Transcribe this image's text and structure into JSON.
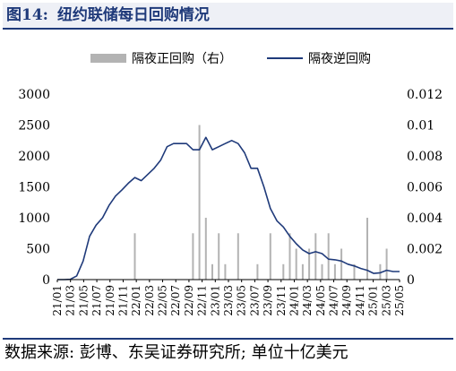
{
  "figure": {
    "label": "图14:",
    "title": "纽约联储每日回购情况"
  },
  "source_note": "数据来源: 彭博、东吴证券研究所; 单位十亿美元",
  "chart_data": {
    "type": "bar+line",
    "title": "",
    "legend_position": "top",
    "grid": false,
    "colors": {
      "bar": "#b3b3b3",
      "line": "#1f3a7a"
    },
    "x_labels": [
      "21/01",
      "21/03",
      "21/05",
      "21/07",
      "21/09",
      "21/11",
      "22/01",
      "22/03",
      "22/05",
      "22/07",
      "22/09",
      "22/11",
      "23/01",
      "23/03",
      "23/05",
      "23/07",
      "23/09",
      "23/11",
      "24/01",
      "24/03",
      "24/05",
      "24/07",
      "24/09",
      "24/11",
      "25/01",
      "25/03",
      "25/05"
    ],
    "x_range": [
      "2021-01",
      "2025-06"
    ],
    "left_axis": {
      "ylim": [
        0,
        3000
      ],
      "ticks": [
        "0",
        "500",
        "1000",
        "1500",
        "2000",
        "2500",
        "3000"
      ]
    },
    "right_axis": {
      "ylim": [
        0,
        0.012
      ],
      "ticks": [
        "0",
        "0.002",
        "0.004",
        "0.006",
        "0.008",
        "0.01",
        "0.012"
      ]
    },
    "series": [
      {
        "name": "隔夜正回购（右）",
        "type": "bar",
        "axis": "right",
        "points": [
          [
            "2022-01",
            0.003
          ],
          [
            "2022-10",
            0.003
          ],
          [
            "2022-11",
            0.01
          ],
          [
            "2022-12",
            0.004
          ],
          [
            "2023-01",
            0.001
          ],
          [
            "2023-02",
            0.003
          ],
          [
            "2023-03",
            0.001
          ],
          [
            "2023-05",
            0.003
          ],
          [
            "2023-08",
            0.001
          ],
          [
            "2023-10",
            0.003
          ],
          [
            "2023-12",
            0.001
          ],
          [
            "2024-01",
            0.003
          ],
          [
            "2024-02",
            0.002
          ],
          [
            "2024-03",
            0.001
          ],
          [
            "2024-04",
            0.002
          ],
          [
            "2024-05",
            0.003
          ],
          [
            "2024-06",
            0.001
          ],
          [
            "2024-07",
            0.003
          ],
          [
            "2024-08",
            0.001
          ],
          [
            "2024-09",
            0.002
          ],
          [
            "2024-11",
            0.001
          ],
          [
            "2025-01",
            0.004
          ],
          [
            "2025-03",
            0.001
          ],
          [
            "2025-04",
            0.002
          ]
        ]
      },
      {
        "name": "隔夜逆回购",
        "type": "line",
        "axis": "left",
        "points": [
          [
            "2021-01",
            0
          ],
          [
            "2021-02",
            0
          ],
          [
            "2021-03",
            5
          ],
          [
            "2021-04",
            60
          ],
          [
            "2021-05",
            300
          ],
          [
            "2021-06",
            700
          ],
          [
            "2021-07",
            880
          ],
          [
            "2021-08",
            1000
          ],
          [
            "2021-09",
            1200
          ],
          [
            "2021-10",
            1350
          ],
          [
            "2021-11",
            1450
          ],
          [
            "2021-12",
            1560
          ],
          [
            "2022-01",
            1650
          ],
          [
            "2022-02",
            1600
          ],
          [
            "2022-03",
            1700
          ],
          [
            "2022-04",
            1800
          ],
          [
            "2022-05",
            1930
          ],
          [
            "2022-06",
            2150
          ],
          [
            "2022-07",
            2200
          ],
          [
            "2022-08",
            2200
          ],
          [
            "2022-09",
            2200
          ],
          [
            "2022-10",
            2100
          ],
          [
            "2022-11",
            2100
          ],
          [
            "2022-12",
            2300
          ],
          [
            "2023-01",
            2100
          ],
          [
            "2023-02",
            2150
          ],
          [
            "2023-03",
            2200
          ],
          [
            "2023-04",
            2250
          ],
          [
            "2023-05",
            2200
          ],
          [
            "2023-06",
            2050
          ],
          [
            "2023-07",
            1800
          ],
          [
            "2023-08",
            1800
          ],
          [
            "2023-09",
            1500
          ],
          [
            "2023-10",
            1150
          ],
          [
            "2023-11",
            950
          ],
          [
            "2023-12",
            850
          ],
          [
            "2024-01",
            700
          ],
          [
            "2024-02",
            580
          ],
          [
            "2024-03",
            480
          ],
          [
            "2024-04",
            420
          ],
          [
            "2024-05",
            450
          ],
          [
            "2024-06",
            420
          ],
          [
            "2024-07",
            330
          ],
          [
            "2024-08",
            320
          ],
          [
            "2024-09",
            300
          ],
          [
            "2024-10",
            250
          ],
          [
            "2024-11",
            220
          ],
          [
            "2024-12",
            180
          ],
          [
            "2025-01",
            150
          ],
          [
            "2025-02",
            100
          ],
          [
            "2025-03",
            110
          ],
          [
            "2025-04",
            150
          ],
          [
            "2025-05",
            130
          ],
          [
            "2025-06",
            130
          ]
        ]
      }
    ]
  }
}
